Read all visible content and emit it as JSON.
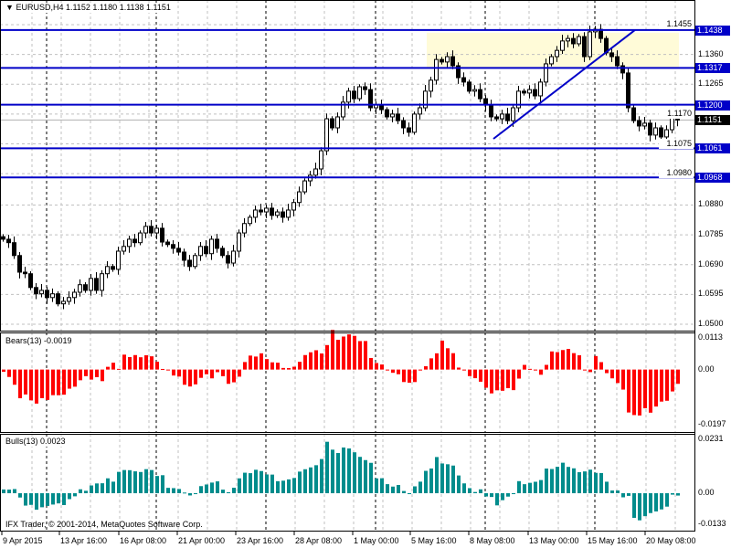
{
  "header": {
    "symbol": "EURUSD,H4",
    "ohlc": "1.1152 1.1180 1.1138 1.1151"
  },
  "colors": {
    "level_line": "#0000c8",
    "zone_fill": "#fffbd8",
    "bears": "#ff0000",
    "bulls": "#008c8c",
    "bull_candle": "#ffffff",
    "bear_candle": "#000000"
  },
  "copyright": "IFX Trader, © 2001-2014, MetaQuotes Software Corp.",
  "chart_data": [
    {
      "type": "candlestick",
      "title": "EURUSD,H4",
      "ylim": [
        1.05,
        1.1455
      ],
      "y_ticks": [
        "1.1455",
        "1.1360",
        "1.1265",
        "1.1170",
        "1.1075",
        "1.0980",
        "1.0880",
        "1.0785",
        "1.0690",
        "1.0595",
        "1.0500"
      ],
      "x_ticks": [
        "9 Apr 2015",
        "13 Apr 16:00",
        "16 Apr 08:00",
        "21 Apr 00:00",
        "23 Apr 16:00",
        "28 Apr 08:00",
        "1 May 00:00",
        "5 May 16:00",
        "8 May 08:00",
        "13 May 00:00",
        "15 May 16:00",
        "20 May 08:00"
      ],
      "closes": [
        1.0771,
        1.076,
        1.0719,
        1.0666,
        1.0661,
        1.0617,
        1.0597,
        1.0608,
        1.0585,
        1.0597,
        1.0565,
        1.0573,
        1.0585,
        1.0602,
        1.0626,
        1.0608,
        1.0646,
        1.0608,
        1.0661,
        1.0684,
        1.0675,
        1.0733,
        1.0748,
        1.0771,
        1.076,
        1.0791,
        1.0812,
        1.0791,
        1.0806,
        1.0762,
        1.0754,
        1.0742,
        1.073,
        1.0704,
        1.0684,
        1.0719,
        1.0748,
        1.0725,
        1.0771,
        1.0742,
        1.0719,
        1.0695,
        1.0733,
        1.0791,
        1.0821,
        1.0841,
        1.0864,
        1.0858,
        1.087,
        1.0847,
        1.0858,
        1.0841,
        1.0864,
        1.0888,
        1.0922,
        1.0957,
        1.0975,
        1.0995,
        1.1053,
        1.1155,
        1.1126,
        1.1161,
        1.1208,
        1.1243,
        1.1219,
        1.1257,
        1.1248,
        1.119,
        1.1199,
        1.1184,
        1.1161,
        1.117,
        1.1149,
        1.1126,
        1.1112,
        1.117,
        1.119,
        1.1243,
        1.1278,
        1.1344,
        1.1336,
        1.1353,
        1.1324,
        1.1286,
        1.1272,
        1.1243,
        1.1248,
        1.1219,
        1.1199,
        1.1161,
        1.1155,
        1.117,
        1.1149,
        1.119,
        1.1243,
        1.1237,
        1.1248,
        1.1228,
        1.1272,
        1.133,
        1.1353,
        1.1373,
        1.1403,
        1.1411,
        1.1394,
        1.1417,
        1.1353,
        1.1432,
        1.144,
        1.1411,
        1.1365,
        1.1353,
        1.1324,
        1.1301,
        1.119,
        1.1149,
        1.1132,
        1.1141,
        1.1103,
        1.1126,
        1.1097,
        1.112,
        1.1161,
        1.1151
      ],
      "current_price": "1.1151",
      "levels": [
        "1.1438",
        "1.1317",
        "1.1200",
        "1.1061",
        "1.0968"
      ],
      "zone": {
        "from": 1.1317,
        "to": 1.1438
      },
      "trendline": {
        "from_price": 1.1091,
        "to_price": 1.1438
      }
    },
    {
      "type": "bar",
      "title": "Bears(13)",
      "value": "-0.0019",
      "ylim": [
        -0.0197,
        0.0113
      ],
      "y_ticks": [
        "0.0113",
        "0.00",
        "-0.0197"
      ]
    },
    {
      "type": "bar",
      "title": "Bulls(13)",
      "value": "0.0023",
      "ylim": [
        -0.0133,
        0.0231
      ],
      "y_ticks": [
        "0.0231",
        "0.00",
        "-0.0133"
      ]
    }
  ]
}
